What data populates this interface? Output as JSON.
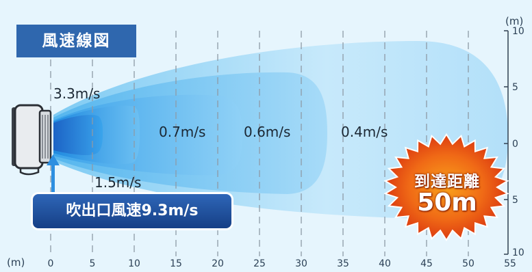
{
  "title": "風速線図",
  "speed_labels": {
    "s1": "3.3m/s",
    "s2": "1.5m/s",
    "s3": "0.7m/s",
    "s4": "0.6m/s",
    "s5": "0.4m/s"
  },
  "outlet_badge": "吹出口風速9.3m/s",
  "reach": {
    "line1": "到達距離",
    "line2": "50m"
  },
  "x_axis": {
    "unit": "(m)",
    "ticks": [
      "0",
      "5",
      "10",
      "15",
      "20",
      "25",
      "30",
      "35",
      "40",
      "45",
      "50",
      "55"
    ]
  },
  "y_axis": {
    "unit": "(m)",
    "ticks": [
      "10",
      "5",
      "0",
      "5",
      "10"
    ]
  },
  "colors": {
    "background": "#e6f5fd",
    "badge_blue": "#2f67ae",
    "airflow_light": "#bfe6fa",
    "airflow_core": "#1d86dc",
    "burst_red": "#e33a12",
    "burst_orange": "#f9a21b"
  },
  "icons": {
    "fan": "fan-unit-icon",
    "outlet_arrow": "up-arrow-icon",
    "reach_burst": "starburst-icon"
  }
}
